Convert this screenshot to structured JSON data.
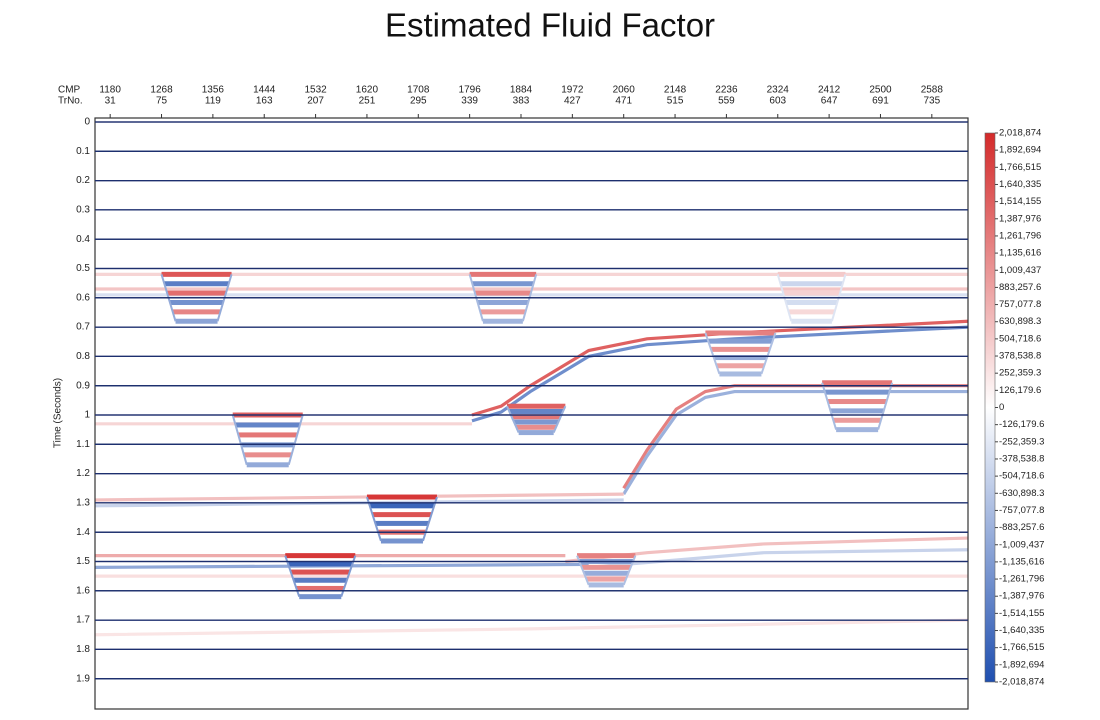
{
  "chart_data": {
    "type": "seismic",
    "title": "Estimated Fluid Factor",
    "x_label": "CMP",
    "x2_label": "TrNo.",
    "y_label": "Time (Seconds)",
    "xlim": [
      1154,
      2650
    ],
    "xticks": [
      1180,
      1268,
      1356,
      1444,
      1532,
      1620,
      1708,
      1796,
      1884,
      1972,
      2060,
      2148,
      2236,
      2324,
      2412,
      2500,
      2588
    ],
    "trno_ticks": [
      31,
      75,
      119,
      163,
      207,
      251,
      295,
      339,
      383,
      427,
      471,
      515,
      559,
      603,
      647,
      691,
      735
    ],
    "ylim": [
      0,
      2.0
    ],
    "yticks": [
      0,
      0.1,
      0.2,
      0.3,
      0.4,
      0.5,
      0.6,
      0.7,
      0.8,
      0.9,
      1,
      1.1,
      1.2,
      1.3,
      1.4,
      1.5,
      1.6,
      1.7,
      1.8,
      1.9
    ],
    "grid": true,
    "grid_color": "#1d2f6e",
    "positive_color": "#d42a2a",
    "negative_color": "#1f4fb0",
    "clim": [
      -2018874,
      2018874
    ],
    "colorbar_ticks": [
      {
        "value": 2018874,
        "label": "2,018,874"
      },
      {
        "value": 1892694,
        "label": "1,892,694"
      },
      {
        "value": 1766515,
        "label": "1,766,515"
      },
      {
        "value": 1640335,
        "label": "1,640,335"
      },
      {
        "value": 1514155,
        "label": "1,514,155"
      },
      {
        "value": 1387976,
        "label": "1,387,976"
      },
      {
        "value": 1261796,
        "label": "1,261,796"
      },
      {
        "value": 1135616,
        "label": "1,135,616"
      },
      {
        "value": 1009437,
        "label": "1,009,437"
      },
      {
        "value": 883257.6,
        "label": "883,257.6"
      },
      {
        "value": 757077.8,
        "label": "757,077.8"
      },
      {
        "value": 630898.3,
        "label": "630,898.3"
      },
      {
        "value": 504718.6,
        "label": "504,718.6"
      },
      {
        "value": 378538.8,
        "label": "378,538.8"
      },
      {
        "value": 252359.3,
        "label": "252,359.3"
      },
      {
        "value": 126179.6,
        "label": "126,179.6"
      },
      0,
      {
        "value": -126179.6,
        "label": "-126,179.6"
      },
      {
        "value": -252359.3,
        "label": "-252,359.3"
      },
      {
        "value": -378538.8,
        "label": "-378,538.8"
      },
      {
        "value": -504718.6,
        "label": "-504,718.6"
      },
      {
        "value": -630898.3,
        "label": "-630,898.3"
      },
      {
        "value": -757077.8,
        "label": "-757,077.8"
      },
      {
        "value": -883257.6,
        "label": "-883,257.6"
      },
      {
        "value": -1009437,
        "label": "-1,009,437"
      },
      {
        "value": -1135616,
        "label": "-1,135,616"
      },
      {
        "value": -1261796,
        "label": "-1,261,796"
      },
      {
        "value": -1387976,
        "label": "-1,387,976"
      },
      {
        "value": -1514155,
        "label": "-1,514,155"
      },
      {
        "value": -1640335,
        "label": "-1,640,335"
      },
      {
        "value": -1766515,
        "label": "-1,766,515"
      },
      {
        "value": -1892694,
        "label": "-1,892,694"
      },
      {
        "value": -2018874,
        "label": "-2,018,874"
      }
    ],
    "reflectors": [
      {
        "cmp": [
          1154,
          2650
        ],
        "time": [
          0.52,
          0.52
        ],
        "amplitude": 400000
      },
      {
        "cmp": [
          1154,
          2650
        ],
        "time": [
          0.57,
          0.57
        ],
        "amplitude": 550000
      },
      {
        "cmp": [
          1154,
          2650
        ],
        "time": [
          0.59,
          0.59
        ],
        "amplitude": -350000
      },
      {
        "cmp": [
          1154,
          1800
        ],
        "time": [
          1.03,
          1.03
        ],
        "amplitude": 400000
      },
      {
        "cmp": [
          1800,
          1850,
          1900,
          1950,
          2000,
          2100,
          2250,
          2650
        ],
        "time": [
          1.0,
          0.97,
          0.9,
          0.84,
          0.78,
          0.74,
          0.72,
          0.68
        ],
        "amplitude": 1500000
      },
      {
        "cmp": [
          1800,
          1850,
          1900,
          1950,
          2000,
          2100,
          2250,
          2650
        ],
        "time": [
          1.02,
          0.99,
          0.92,
          0.86,
          0.8,
          0.76,
          0.74,
          0.7
        ],
        "amplitude": -1300000
      },
      {
        "cmp": [
          2060,
          2100,
          2150,
          2200,
          2250,
          2650
        ],
        "time": [
          1.25,
          1.12,
          0.98,
          0.92,
          0.9,
          0.9
        ],
        "amplitude": 1200000
      },
      {
        "cmp": [
          2060,
          2100,
          2150,
          2200,
          2250,
          2650
        ],
        "time": [
          1.27,
          1.14,
          1.0,
          0.94,
          0.92,
          0.92
        ],
        "amplitude": -900000
      },
      {
        "cmp": [
          1154,
          2060
        ],
        "time": [
          1.29,
          1.27
        ],
        "amplitude": 600000
      },
      {
        "cmp": [
          1154,
          2060
        ],
        "time": [
          1.31,
          1.29
        ],
        "amplitude": -500000
      },
      {
        "cmp": [
          1154,
          1960
        ],
        "time": [
          1.48,
          1.48
        ],
        "amplitude": 800000
      },
      {
        "cmp": [
          1960,
          2100,
          2300,
          2650
        ],
        "time": [
          1.5,
          1.47,
          1.44,
          1.42
        ],
        "amplitude": 600000
      },
      {
        "cmp": [
          1154,
          2000
        ],
        "time": [
          1.52,
          1.51
        ],
        "amplitude": -1000000
      },
      {
        "cmp": [
          2000,
          2300,
          2650
        ],
        "time": [
          1.52,
          1.47,
          1.46
        ],
        "amplitude": -500000
      },
      {
        "cmp": [
          1154,
          2650
        ],
        "time": [
          1.55,
          1.55
        ],
        "amplitude": 300000
      },
      {
        "cmp": [
          1154,
          1900,
          2650
        ],
        "time": [
          1.75,
          1.73,
          1.7
        ],
        "amplitude": 250000
      }
    ],
    "anomalies": [
      {
        "cmp": [
          1268,
          1388
        ],
        "time": [
          0.52,
          0.68
        ],
        "amplitude": 1600000
      },
      {
        "cmp": [
          1796,
          1910
        ],
        "time": [
          0.52,
          0.68
        ],
        "amplitude": 1300000
      },
      {
        "cmp": [
          2324,
          2440
        ],
        "time": [
          0.52,
          0.68
        ],
        "amplitude": 500000
      },
      {
        "cmp": [
          2200,
          2320
        ],
        "time": [
          0.72,
          0.86
        ],
        "amplitude": 1200000
      },
      {
        "cmp": [
          2400,
          2520
        ],
        "time": [
          0.89,
          1.05
        ],
        "amplitude": 1300000
      },
      {
        "cmp": [
          1390,
          1510
        ],
        "time": [
          1.0,
          1.17
        ],
        "amplitude": 1500000
      },
      {
        "cmp": [
          1620,
          1740
        ],
        "time": [
          1.28,
          1.43
        ],
        "amplitude": 1900000
      },
      {
        "cmp": [
          1480,
          1600
        ],
        "time": [
          1.48,
          1.62
        ],
        "amplitude": 1900000
      },
      {
        "cmp": [
          1860,
          1960
        ],
        "time": [
          0.97,
          1.06
        ],
        "amplitude": 1500000
      },
      {
        "cmp": [
          1980,
          2080
        ],
        "time": [
          1.48,
          1.58
        ],
        "amplitude": 1200000
      }
    ]
  }
}
